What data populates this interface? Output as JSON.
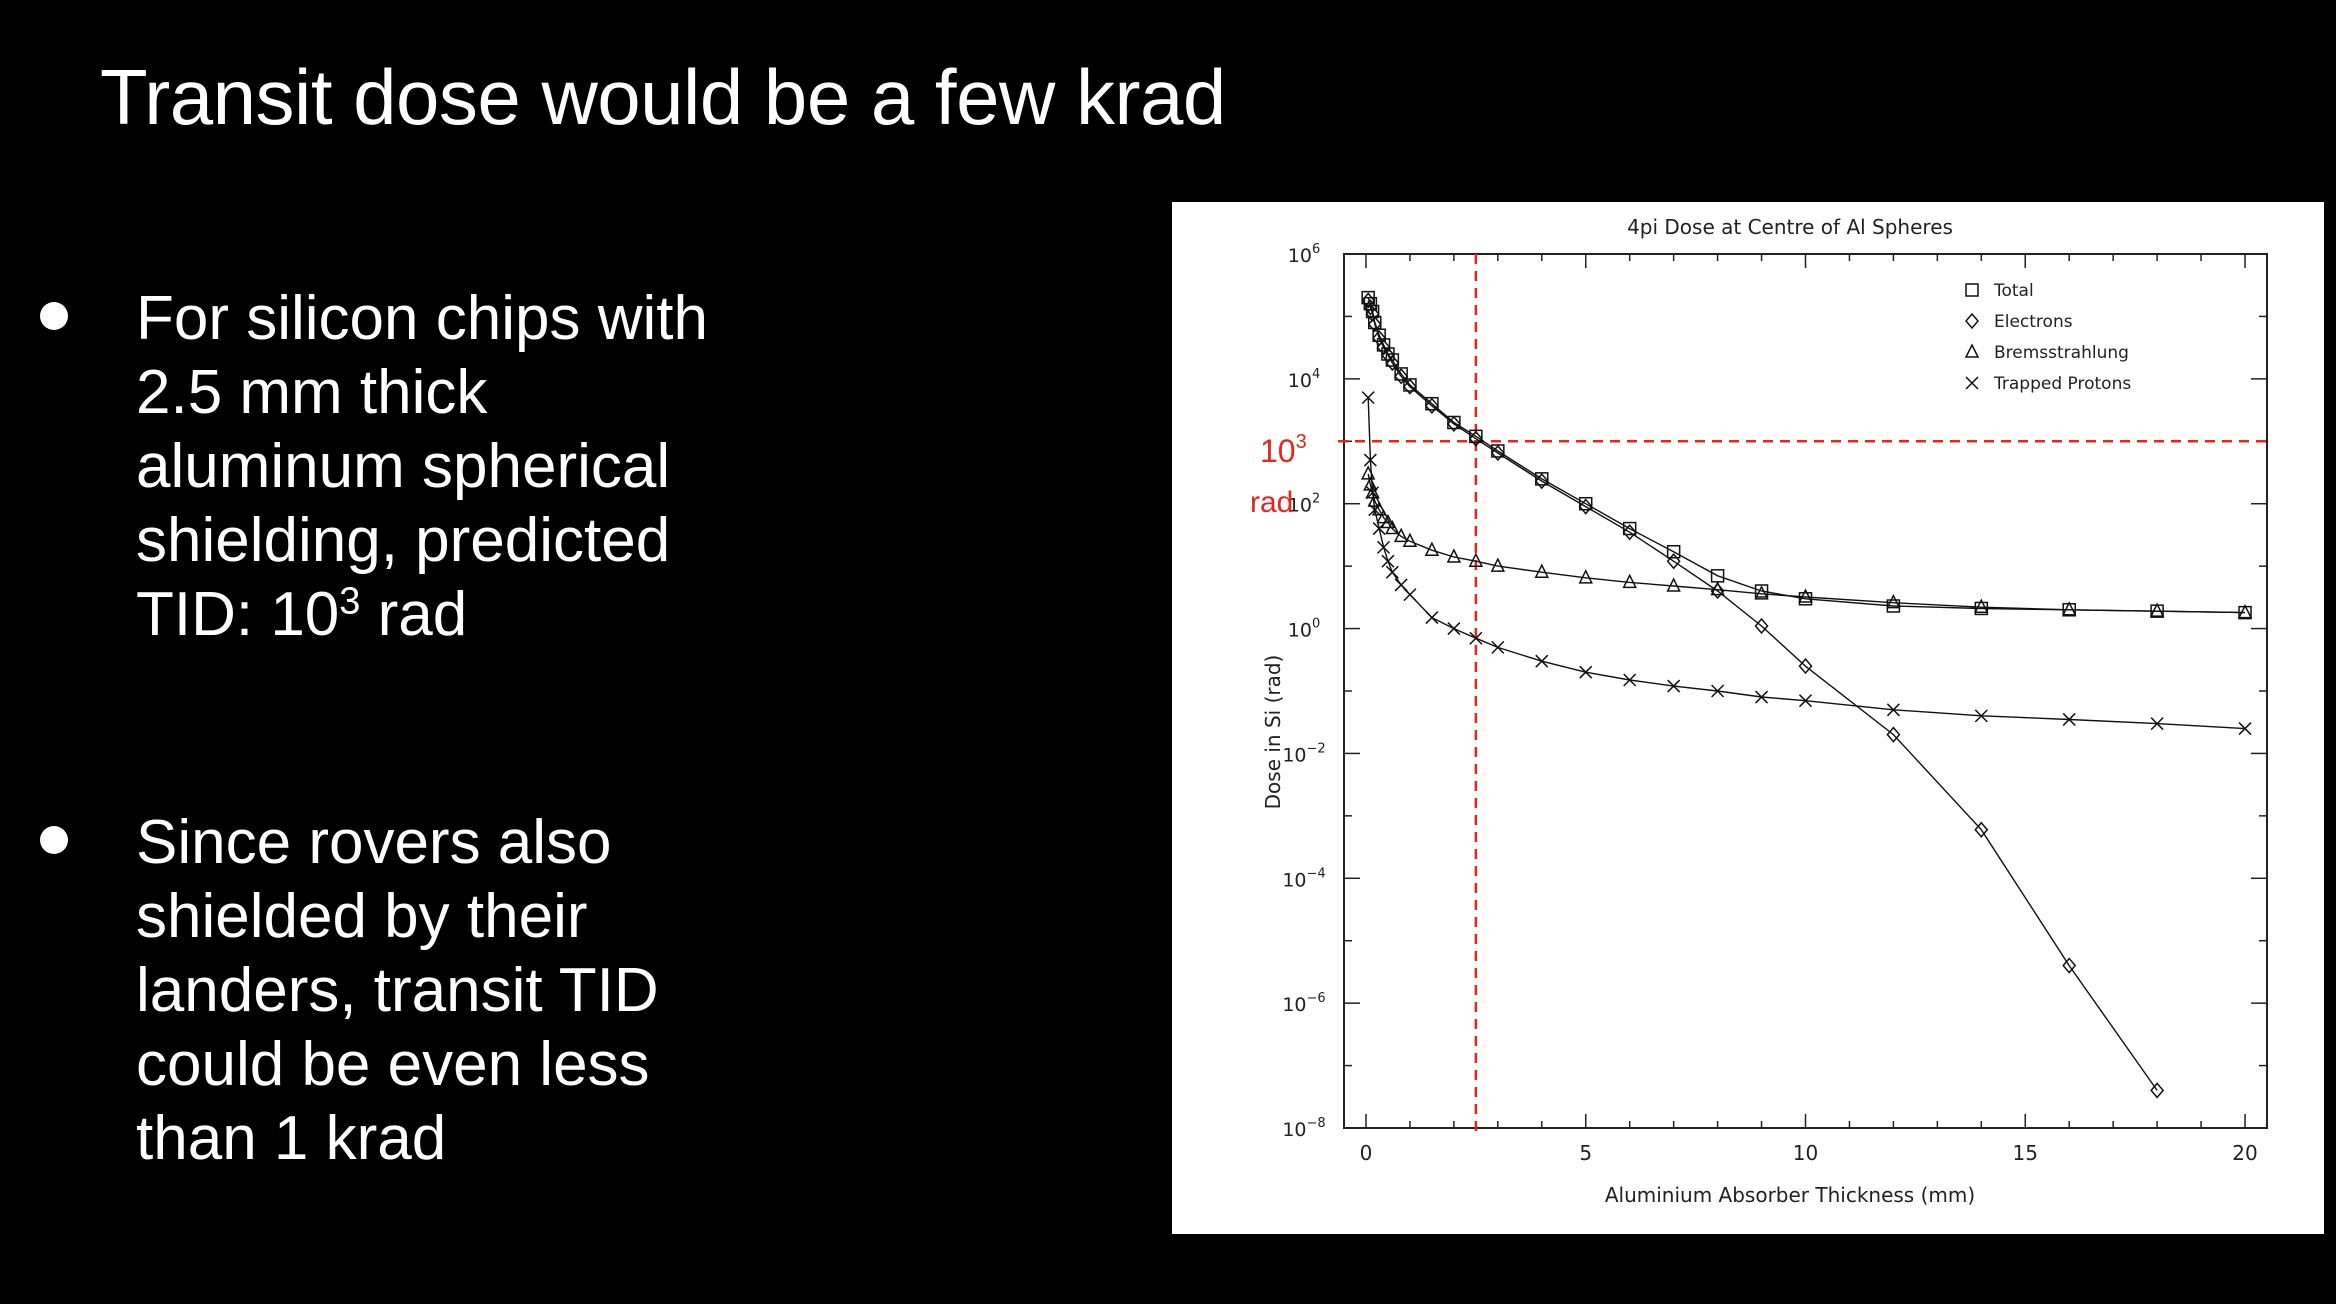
{
  "slide": {
    "title": "Transit dose would be a few krad",
    "bullets": [
      {
        "lines": [
          "For silicon chips with",
          "2.5 mm thick",
          "aluminum spherical",
          "shielding, predicted"
        ],
        "last_line_prefix": "TID: 10",
        "last_line_sup": "3",
        "last_line_suffix": " rad"
      },
      {
        "lines": [
          "Since rovers also",
          "shielded by their",
          "landers, transit TID",
          "could  be even less",
          "than 1 krad"
        ]
      }
    ]
  },
  "annotation": {
    "value_base": "10",
    "value_exp": "3",
    "unit": "rad",
    "color": "#e3261f",
    "x_marker": 2.5,
    "y_marker": 1000
  },
  "chart_data": {
    "type": "scatter",
    "title": "4pi Dose at Centre of Al Spheres",
    "xlabel": "Aluminium Absorber Thickness (mm)",
    "ylabel": "Dose in Si (rad)",
    "xlim": [
      -0.5,
      20.5
    ],
    "ylim_exp": [
      -8,
      6
    ],
    "y_scale": "log",
    "x_ticks": [
      0,
      5,
      10,
      15,
      20
    ],
    "y_tick_base": "10",
    "y_tick_exps": [
      "6",
      "4",
      "2",
      "0",
      "−2",
      "−4",
      "−6",
      "−8"
    ],
    "legend_position": "top-right",
    "series": [
      {
        "name": "Total",
        "marker": "square",
        "x": [
          0.05,
          0.1,
          0.15,
          0.2,
          0.3,
          0.4,
          0.5,
          0.6,
          0.8,
          1.0,
          1.5,
          2.0,
          2.5,
          3.0,
          4.0,
          5.0,
          6.0,
          7.0,
          8.0,
          9.0,
          10.0,
          12.0,
          14.0,
          16.0,
          18.0,
          20.0
        ],
        "y": [
          200000,
          160000,
          120000,
          80000,
          50000,
          35000,
          25000,
          20000,
          12000,
          8000,
          4000,
          2000,
          1200,
          700,
          250,
          100,
          40,
          17,
          7,
          4,
          3,
          2.3,
          2.1,
          2.0,
          1.9,
          1.8
        ]
      },
      {
        "name": "Electrons",
        "marker": "diamond",
        "x": [
          0.05,
          0.1,
          0.15,
          0.2,
          0.3,
          0.4,
          0.5,
          0.6,
          0.8,
          1.0,
          1.5,
          2.0,
          2.5,
          3.0,
          4.0,
          5.0,
          6.0,
          7.0,
          8.0,
          9.0,
          10.0,
          12.0,
          14.0,
          16.0,
          18.0
        ],
        "y": [
          180000,
          140000,
          110000,
          75000,
          45000,
          32000,
          24000,
          18000,
          11000,
          7500,
          3700,
          1900,
          1100,
          650,
          230,
          90,
          35,
          12,
          4,
          1.1,
          0.25,
          0.02,
          0.0006,
          4e-06,
          4e-08
        ]
      },
      {
        "name": "Bremsstrahlung",
        "marker": "triangle",
        "x": [
          0.05,
          0.1,
          0.15,
          0.2,
          0.3,
          0.4,
          0.5,
          0.6,
          0.8,
          1.0,
          1.5,
          2.0,
          2.5,
          3.0,
          4.0,
          5.0,
          6.0,
          7.0,
          8.0,
          9.0,
          10.0,
          12.0,
          14.0,
          16.0,
          18.0,
          20.0
        ],
        "y": [
          300,
          200,
          150,
          110,
          80,
          60,
          50,
          40,
          30,
          25,
          18,
          14,
          12,
          10,
          8,
          6.5,
          5.5,
          4.8,
          4.2,
          3.6,
          3.2,
          2.6,
          2.2,
          2.0,
          1.9,
          1.8
        ]
      },
      {
        "name": "Trapped Protons",
        "marker": "x",
        "x": [
          0.05,
          0.1,
          0.15,
          0.2,
          0.3,
          0.4,
          0.5,
          0.6,
          0.8,
          1.0,
          1.5,
          2.0,
          2.5,
          3.0,
          4.0,
          5.0,
          6.0,
          7.0,
          8.0,
          9.0,
          10.0,
          12.0,
          14.0,
          16.0,
          18.0,
          20.0
        ],
        "y": [
          5000,
          500,
          150,
          80,
          40,
          20,
          12,
          8,
          5,
          3.5,
          1.5,
          1,
          0.7,
          0.5,
          0.3,
          0.2,
          0.15,
          0.12,
          0.1,
          0.08,
          0.07,
          0.05,
          0.04,
          0.035,
          0.03,
          0.025
        ]
      }
    ]
  }
}
